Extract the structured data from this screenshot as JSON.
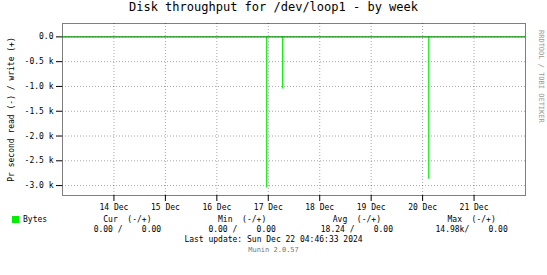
{
  "chart_data": {
    "type": "spike",
    "title": "Disk throughput for /dev/loop1 - by week",
    "ylabel": "Pr second read (-) / write (+)",
    "xlim": [
      0,
      9
    ],
    "xticks": [
      {
        "value": 1,
        "label": "14 Dec"
      },
      {
        "value": 2,
        "label": "15 Dec"
      },
      {
        "value": 3,
        "label": "16 Dec"
      },
      {
        "value": 4,
        "label": "17 Dec"
      },
      {
        "value": 5,
        "label": "18 Dec"
      },
      {
        "value": 6,
        "label": "19 Dec"
      },
      {
        "value": 7,
        "label": "20 Dec"
      },
      {
        "value": 8,
        "label": "21 Dec"
      }
    ],
    "ylim": [
      -3200,
      270
    ],
    "yticks": [
      {
        "value": 0,
        "label": "0.0"
      },
      {
        "value": -500,
        "label": "-0.5 k"
      },
      {
        "value": -1000,
        "label": "-1.0 k"
      },
      {
        "value": -1500,
        "label": "-1.5 k"
      },
      {
        "value": -2000,
        "label": "-2.0 k"
      },
      {
        "value": -2500,
        "label": "-2.5 k"
      },
      {
        "value": -3000,
        "label": "-3.0 k"
      }
    ],
    "grid": true,
    "legend": "bottom left",
    "base": 0,
    "series": [
      {
        "name": "Bytes",
        "color": "#00ee00",
        "x": [
          3.97,
          4.28,
          7.12
        ],
        "values": [
          -3050,
          -1050,
          -2870
        ]
      }
    ],
    "table": {
      "columns": [
        "Cur  (-/+)",
        "Min  (-/+)",
        "Avg  (-/+)",
        "Max  (-/+)"
      ],
      "values": [
        "0.00 /    0.00",
        "0.00 /    0.00",
        "18.24 /    0.00",
        "14.98k/    0.00"
      ]
    },
    "notes": [
      "Last update: Sun Dec 22 04:46:33 2024",
      "Munin 2.0.57"
    ],
    "watermark": "RRDTOOL / TOBI OETIKER"
  }
}
